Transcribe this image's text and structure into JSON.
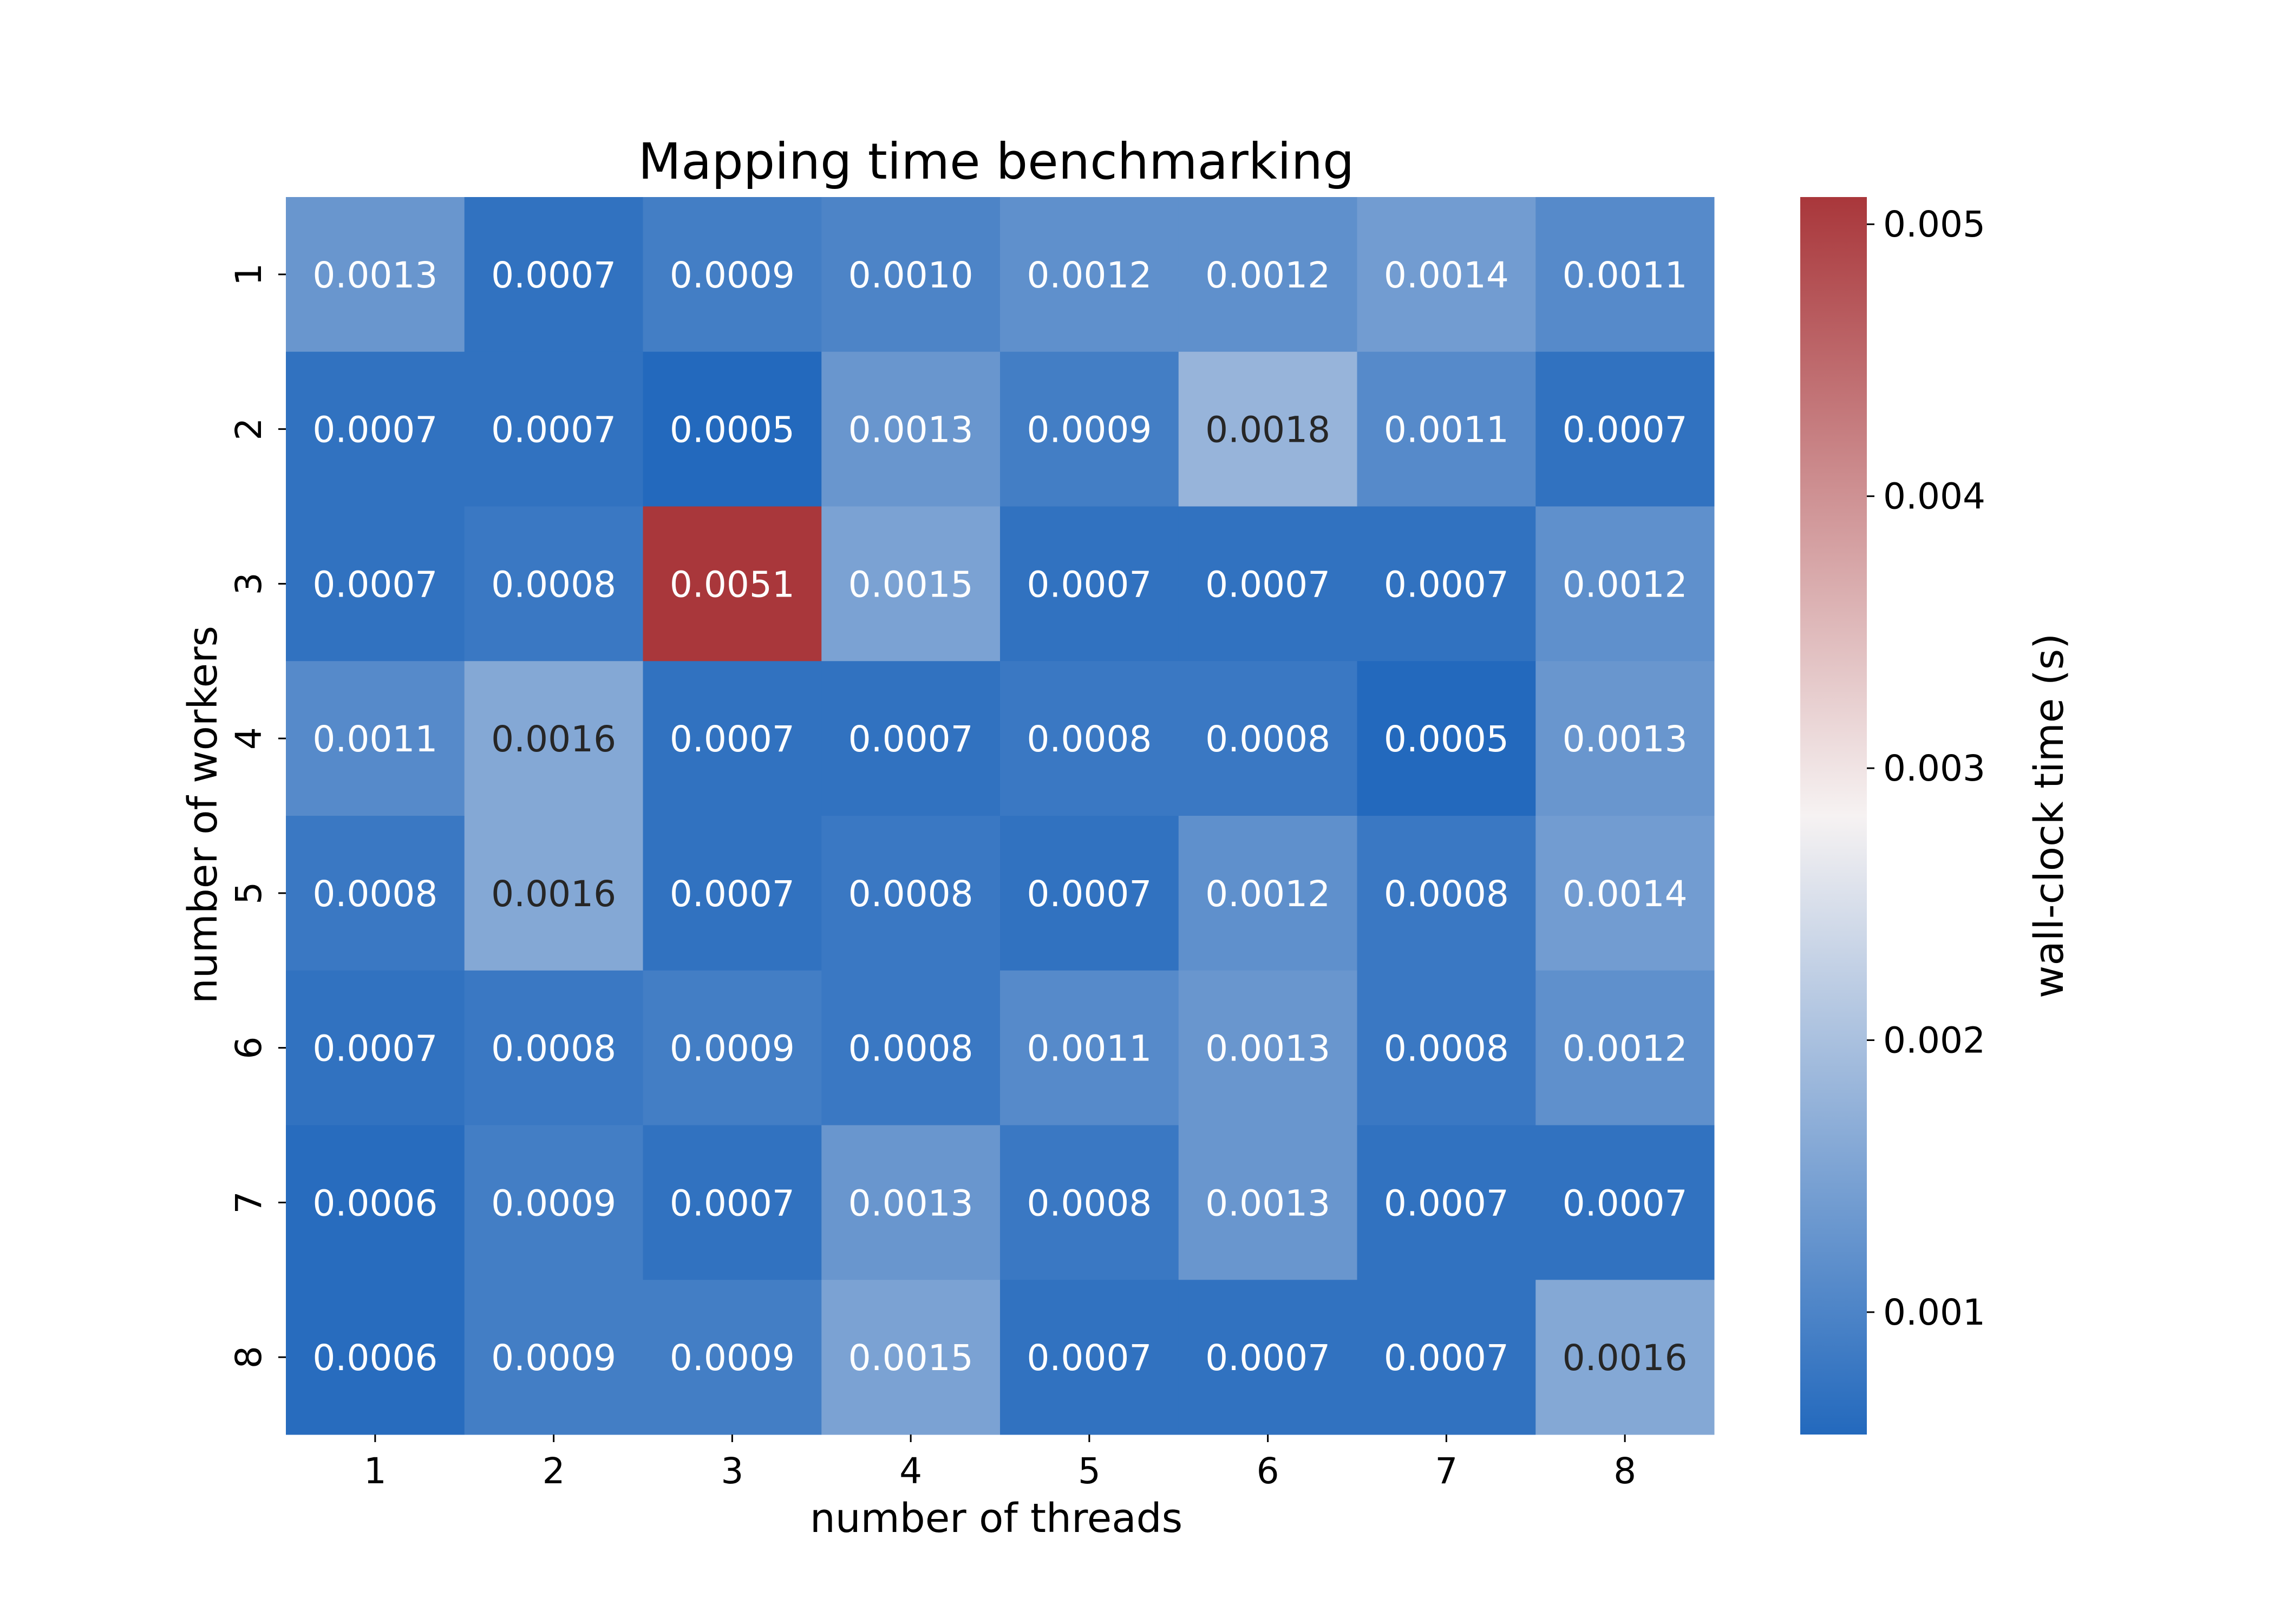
{
  "chart_data": {
    "type": "heatmap",
    "title": "Mapping time benchmarking",
    "xlabel": "number of threads",
    "ylabel": "number of workers",
    "x_categories": [
      "1",
      "2",
      "3",
      "4",
      "5",
      "6",
      "7",
      "8"
    ],
    "y_categories": [
      "1",
      "2",
      "3",
      "4",
      "5",
      "6",
      "7",
      "8"
    ],
    "values": [
      [
        0.0013,
        0.0007,
        0.0009,
        0.001,
        0.0012,
        0.0012,
        0.0014,
        0.0011
      ],
      [
        0.0007,
        0.0007,
        0.0005,
        0.0013,
        0.0009,
        0.0018,
        0.0011,
        0.0007
      ],
      [
        0.0007,
        0.0008,
        0.0051,
        0.0015,
        0.0007,
        0.0007,
        0.0007,
        0.0012
      ],
      [
        0.0011,
        0.0016,
        0.0007,
        0.0007,
        0.0008,
        0.0008,
        0.0005,
        0.0013
      ],
      [
        0.0008,
        0.0016,
        0.0007,
        0.0008,
        0.0007,
        0.0012,
        0.0008,
        0.0014
      ],
      [
        0.0007,
        0.0008,
        0.0009,
        0.0008,
        0.0011,
        0.0013,
        0.0008,
        0.0012
      ],
      [
        0.0006,
        0.0009,
        0.0007,
        0.0013,
        0.0008,
        0.0013,
        0.0007,
        0.0007
      ],
      [
        0.0006,
        0.0009,
        0.0009,
        0.0015,
        0.0007,
        0.0007,
        0.0007,
        0.0016
      ]
    ],
    "cell_labels": [
      [
        "0.0013",
        "0.0007",
        "0.0009",
        "0.0010",
        "0.0012",
        "0.0012",
        "0.0014",
        "0.0011"
      ],
      [
        "0.0007",
        "0.0007",
        "0.0005",
        "0.0013",
        "0.0009",
        "0.0018",
        "0.0011",
        "0.0007"
      ],
      [
        "0.0007",
        "0.0008",
        "0.0051",
        "0.0015",
        "0.0007",
        "0.0007",
        "0.0007",
        "0.0012"
      ],
      [
        "0.0011",
        "0.0016",
        "0.0007",
        "0.0007",
        "0.0008",
        "0.0008",
        "0.0005",
        "0.0013"
      ],
      [
        "0.0008",
        "0.0016",
        "0.0007",
        "0.0008",
        "0.0007",
        "0.0012",
        "0.0008",
        "0.0014"
      ],
      [
        "0.0007",
        "0.0008",
        "0.0009",
        "0.0008",
        "0.0011",
        "0.0013",
        "0.0008",
        "0.0012"
      ],
      [
        "0.0006",
        "0.0009",
        "0.0007",
        "0.0013",
        "0.0008",
        "0.0013",
        "0.0007",
        "0.0007"
      ],
      [
        "0.0006",
        "0.0009",
        "0.0009",
        "0.0015",
        "0.0007",
        "0.0007",
        "0.0007",
        "0.0016"
      ]
    ],
    "colorbar": {
      "label": "wall-clock time (s)",
      "range": [
        0.00055,
        0.0051
      ],
      "ticks": [
        0.001,
        0.002,
        0.003,
        0.004,
        0.005
      ],
      "tick_labels": [
        "0.001",
        "0.002",
        "0.003",
        "0.004",
        "0.005"
      ],
      "colormap": "vlag",
      "low_color": "#2369bd",
      "mid_color": "#f6f2f2",
      "high_color": "#a9373b"
    },
    "grid": false,
    "legend": "colorbar-right"
  }
}
